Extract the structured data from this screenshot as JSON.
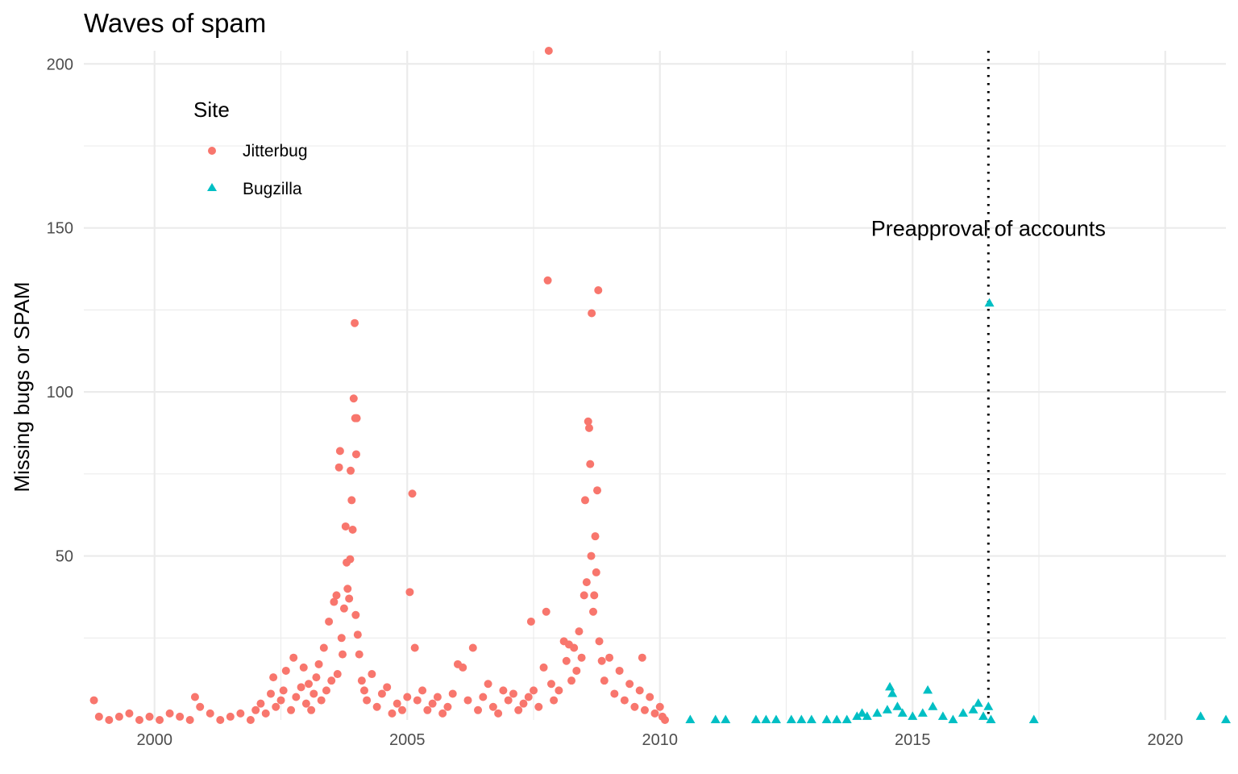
{
  "chart_data": {
    "type": "scatter",
    "title": "Waves of spam",
    "xlabel": "",
    "ylabel": "Missing bugs or SPAM",
    "xlim": [
      1998.6,
      2021.2
    ],
    "ylim": [
      0,
      204
    ],
    "x_ticks": [
      2000,
      2005,
      2010,
      2015,
      2020
    ],
    "y_ticks": [
      50,
      100,
      150,
      200
    ],
    "grid": true,
    "legend": {
      "title": "Site",
      "placement": "top-left (inside plot)",
      "entries": [
        {
          "label": "Jitterbug",
          "shape": "circle",
          "color": "#F8766D"
        },
        {
          "label": "Bugzilla",
          "shape": "triangle",
          "color": "#00BFC4"
        }
      ]
    },
    "annotation": {
      "text": "Preapproval of accounts",
      "x": 2016.5,
      "y": 150,
      "vline_x": 2016.5,
      "line_style": "dotted"
    },
    "series": [
      {
        "name": "Jitterbug",
        "shape": "circle",
        "color": "#F8766D",
        "points": [
          [
            1998.8,
            6
          ],
          [
            1998.9,
            1
          ],
          [
            1999.1,
            0
          ],
          [
            1999.3,
            1
          ],
          [
            1999.5,
            2
          ],
          [
            1999.7,
            0
          ],
          [
            1999.9,
            1
          ],
          [
            2000.1,
            0
          ],
          [
            2000.3,
            2
          ],
          [
            2000.5,
            1
          ],
          [
            2000.7,
            0
          ],
          [
            2000.8,
            7
          ],
          [
            2000.9,
            4
          ],
          [
            2001.1,
            2
          ],
          [
            2001.3,
            0
          ],
          [
            2001.5,
            1
          ],
          [
            2001.7,
            2
          ],
          [
            2001.9,
            0
          ],
          [
            2002.0,
            3
          ],
          [
            2002.1,
            5
          ],
          [
            2002.2,
            2
          ],
          [
            2002.3,
            8
          ],
          [
            2002.35,
            13
          ],
          [
            2002.4,
            4
          ],
          [
            2002.5,
            6
          ],
          [
            2002.55,
            9
          ],
          [
            2002.6,
            15
          ],
          [
            2002.7,
            3
          ],
          [
            2002.75,
            19
          ],
          [
            2002.8,
            7
          ],
          [
            2002.9,
            10
          ],
          [
            2002.95,
            16
          ],
          [
            2003.0,
            5
          ],
          [
            2003.05,
            11
          ],
          [
            2003.1,
            3
          ],
          [
            2003.15,
            8
          ],
          [
            2003.2,
            13
          ],
          [
            2003.25,
            17
          ],
          [
            2003.3,
            6
          ],
          [
            2003.35,
            22
          ],
          [
            2003.4,
            9
          ],
          [
            2003.45,
            30
          ],
          [
            2003.5,
            12
          ],
          [
            2003.55,
            36
          ],
          [
            2003.6,
            38
          ],
          [
            2003.62,
            14
          ],
          [
            2003.65,
            77
          ],
          [
            2003.67,
            82
          ],
          [
            2003.7,
            25
          ],
          [
            2003.72,
            20
          ],
          [
            2003.75,
            34
          ],
          [
            2003.78,
            59
          ],
          [
            2003.8,
            48
          ],
          [
            2003.82,
            40
          ],
          [
            2003.85,
            37
          ],
          [
            2003.87,
            49
          ],
          [
            2003.88,
            76
          ],
          [
            2003.9,
            67
          ],
          [
            2003.92,
            58
          ],
          [
            2003.94,
            98
          ],
          [
            2003.96,
            121
          ],
          [
            2003.97,
            92
          ],
          [
            2003.99,
            81
          ],
          [
            2004.0,
            92
          ],
          [
            2003.98,
            32
          ],
          [
            2004.02,
            26
          ],
          [
            2004.05,
            20
          ],
          [
            2004.1,
            12
          ],
          [
            2004.15,
            9
          ],
          [
            2004.2,
            6
          ],
          [
            2004.3,
            14
          ],
          [
            2004.4,
            4
          ],
          [
            2004.5,
            8
          ],
          [
            2004.6,
            10
          ],
          [
            2004.7,
            2
          ],
          [
            2004.8,
            5
          ],
          [
            2004.9,
            3
          ],
          [
            2005.0,
            7
          ],
          [
            2005.05,
            39
          ],
          [
            2005.1,
            69
          ],
          [
            2005.15,
            22
          ],
          [
            2005.2,
            6
          ],
          [
            2005.3,
            9
          ],
          [
            2005.4,
            3
          ],
          [
            2005.5,
            5
          ],
          [
            2005.6,
            7
          ],
          [
            2005.7,
            2
          ],
          [
            2005.8,
            4
          ],
          [
            2005.9,
            8
          ],
          [
            2006.0,
            17
          ],
          [
            2006.1,
            16
          ],
          [
            2006.2,
            6
          ],
          [
            2006.3,
            22
          ],
          [
            2006.4,
            3
          ],
          [
            2006.5,
            7
          ],
          [
            2006.6,
            11
          ],
          [
            2006.7,
            4
          ],
          [
            2006.8,
            2
          ],
          [
            2006.9,
            9
          ],
          [
            2007.0,
            6
          ],
          [
            2007.1,
            8
          ],
          [
            2007.2,
            3
          ],
          [
            2007.3,
            5
          ],
          [
            2007.4,
            7
          ],
          [
            2007.45,
            30
          ],
          [
            2007.5,
            9
          ],
          [
            2007.6,
            4
          ],
          [
            2007.7,
            16
          ],
          [
            2007.75,
            33
          ],
          [
            2007.78,
            134
          ],
          [
            2007.8,
            204
          ],
          [
            2007.85,
            11
          ],
          [
            2007.9,
            6
          ],
          [
            2008.0,
            9
          ],
          [
            2008.1,
            24
          ],
          [
            2008.15,
            18
          ],
          [
            2008.2,
            23
          ],
          [
            2008.25,
            12
          ],
          [
            2008.3,
            22
          ],
          [
            2008.35,
            15
          ],
          [
            2008.4,
            27
          ],
          [
            2008.45,
            19
          ],
          [
            2008.5,
            38
          ],
          [
            2008.52,
            67
          ],
          [
            2008.55,
            42
          ],
          [
            2008.58,
            91
          ],
          [
            2008.6,
            89
          ],
          [
            2008.62,
            78
          ],
          [
            2008.64,
            50
          ],
          [
            2008.65,
            124
          ],
          [
            2008.68,
            33
          ],
          [
            2008.7,
            38
          ],
          [
            2008.72,
            56
          ],
          [
            2008.74,
            45
          ],
          [
            2008.76,
            70
          ],
          [
            2008.78,
            131
          ],
          [
            2008.8,
            24
          ],
          [
            2008.85,
            18
          ],
          [
            2008.9,
            12
          ],
          [
            2009.0,
            19
          ],
          [
            2009.1,
            8
          ],
          [
            2009.2,
            15
          ],
          [
            2009.3,
            6
          ],
          [
            2009.4,
            11
          ],
          [
            2009.5,
            4
          ],
          [
            2009.6,
            9
          ],
          [
            2009.65,
            19
          ],
          [
            2009.7,
            3
          ],
          [
            2009.8,
            7
          ],
          [
            2009.9,
            2
          ],
          [
            2010.0,
            4
          ],
          [
            2010.05,
            1
          ],
          [
            2010.1,
            0
          ]
        ]
      },
      {
        "name": "Bugzilla",
        "shape": "triangle",
        "color": "#00BFC4",
        "points": [
          [
            2010.6,
            0
          ],
          [
            2011.1,
            0
          ],
          [
            2011.3,
            0
          ],
          [
            2011.9,
            0
          ],
          [
            2012.1,
            0
          ],
          [
            2012.3,
            0
          ],
          [
            2012.6,
            0
          ],
          [
            2012.8,
            0
          ],
          [
            2013.0,
            0
          ],
          [
            2013.3,
            0
          ],
          [
            2013.5,
            0
          ],
          [
            2013.7,
            0
          ],
          [
            2013.9,
            1
          ],
          [
            2014.0,
            2
          ],
          [
            2014.1,
            1
          ],
          [
            2014.3,
            2
          ],
          [
            2014.5,
            3
          ],
          [
            2014.55,
            10
          ],
          [
            2014.6,
            8
          ],
          [
            2014.7,
            4
          ],
          [
            2014.8,
            2
          ],
          [
            2015.0,
            1
          ],
          [
            2015.2,
            2
          ],
          [
            2015.3,
            9
          ],
          [
            2015.4,
            4
          ],
          [
            2015.6,
            1
          ],
          [
            2015.8,
            0
          ],
          [
            2016.0,
            2
          ],
          [
            2016.2,
            3
          ],
          [
            2016.3,
            5
          ],
          [
            2016.4,
            1
          ],
          [
            2016.5,
            4
          ],
          [
            2016.52,
            127
          ],
          [
            2016.55,
            0
          ],
          [
            2017.4,
            0
          ],
          [
            2020.7,
            1
          ],
          [
            2021.2,
            0
          ]
        ]
      }
    ]
  }
}
